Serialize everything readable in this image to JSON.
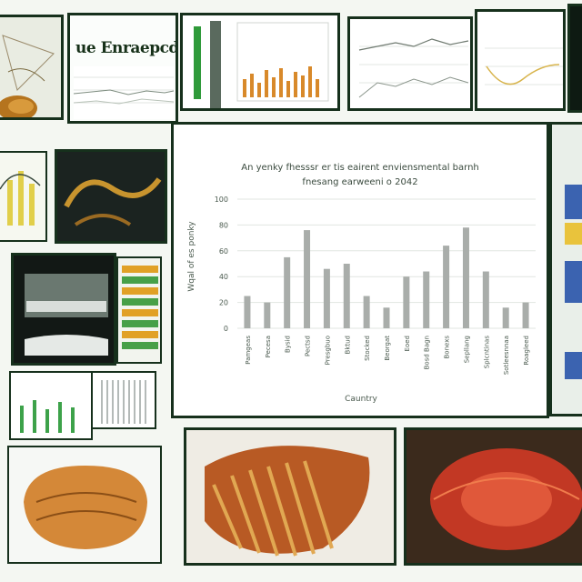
{
  "header_title": "ue Enraepcds",
  "chart_data": {
    "type": "bar",
    "title": "An yenky fhesssr er tis eairent enviensmental barnh",
    "subtitle": "fnesang earweeni o 2042",
    "ylabel": "Wqal of es ponky",
    "xlabel": "Cauntry",
    "yticks": [
      "0",
      "20",
      "40",
      "60",
      "80",
      "100"
    ],
    "ylim": [
      0,
      100
    ],
    "categories": [
      "Pamgeas",
      "Pecesa",
      "Bysid",
      "Pectsd",
      "Presgbuo",
      "Bktud",
      "Stocked",
      "Beorgat",
      "Eoed",
      "Bosd Bagn",
      "Bonexs",
      "Sepllang",
      "Splcntinas",
      "Sotleesnnaa",
      "Roagleed"
    ],
    "values": [
      25,
      20,
      55,
      76,
      46,
      50,
      25,
      16,
      40,
      44,
      64,
      78,
      44,
      16,
      20
    ],
    "bar_color": "#a9adaa"
  }
}
